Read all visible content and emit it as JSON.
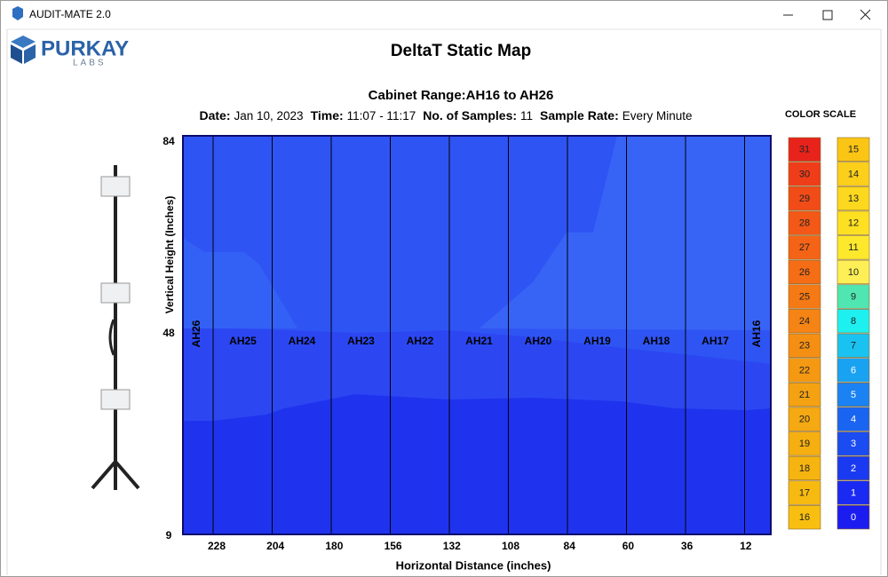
{
  "window": {
    "title": "AUDIT-MATE 2.0"
  },
  "logo": {
    "name": "PURKAY",
    "sub": "LABS"
  },
  "header": {
    "title": "DeltaT Static Map",
    "subtitle": "Cabinet Range:AH16 to AH26",
    "info": [
      {
        "label": "Date:",
        "value": "Jan 10, 2023"
      },
      {
        "label": "Time:",
        "value": "11:07 - 11:17"
      },
      {
        "label": "No. of Samples:",
        "value": "11"
      },
      {
        "label": "Sample Rate:",
        "value": "Every Minute"
      }
    ]
  },
  "map": {
    "y_label": "Vertical Height (Inches)",
    "x_label": "Horizontal Distance (inches)",
    "y_ticks": [
      84,
      48,
      9
    ],
    "x_ticks": [
      228,
      204,
      180,
      156,
      132,
      108,
      84,
      60,
      36,
      12
    ],
    "cabinets": [
      "AH26",
      "AH25",
      "AH24",
      "AH23",
      "AH22",
      "AH21",
      "AH20",
      "AH19",
      "AH18",
      "AH17",
      "AH16"
    ]
  },
  "color_scale": {
    "title": "COLOR SCALE",
    "left": [
      {
        "value": 31,
        "color": "#e8231c"
      },
      {
        "value": 30,
        "color": "#ef3d1a"
      },
      {
        "value": 29,
        "color": "#f14c18"
      },
      {
        "value": 28,
        "color": "#f35817"
      },
      {
        "value": 27,
        "color": "#f46316"
      },
      {
        "value": 26,
        "color": "#f56d15"
      },
      {
        "value": 25,
        "color": "#f57914"
      },
      {
        "value": 24,
        "color": "#f58414"
      },
      {
        "value": 23,
        "color": "#f58f13"
      },
      {
        "value": 22,
        "color": "#f59912"
      },
      {
        "value": 21,
        "color": "#f5a212"
      },
      {
        "value": 20,
        "color": "#f5a912"
      },
      {
        "value": 19,
        "color": "#f5af11"
      },
      {
        "value": 18,
        "color": "#f6b411"
      },
      {
        "value": 17,
        "color": "#f7ba10"
      },
      {
        "value": 16,
        "color": "#f8bf10"
      }
    ],
    "right": [
      {
        "value": 15,
        "color": "#fbc515"
      },
      {
        "value": 14,
        "color": "#fccf1a"
      },
      {
        "value": 13,
        "color": "#fcd81e"
      },
      {
        "value": 12,
        "color": "#fde022"
      },
      {
        "value": 11,
        "color": "#fde82c"
      },
      {
        "value": 10,
        "color": "#fdef55"
      },
      {
        "value": 9,
        "color": "#4fe6b2"
      },
      {
        "value": 8,
        "color": "#1ef0f0"
      },
      {
        "value": 7,
        "color": "#1ac2f2"
      },
      {
        "value": 6,
        "color": "#1aa2f2"
      },
      {
        "value": 5,
        "color": "#1a82f2"
      },
      {
        "value": 4,
        "color": "#1a64f2"
      },
      {
        "value": 3,
        "color": "#1a4cf2"
      },
      {
        "value": 2,
        "color": "#1a3af2"
      },
      {
        "value": 1,
        "color": "#1a2af2"
      },
      {
        "value": 0,
        "color": "#1a1cf0"
      }
    ]
  }
}
